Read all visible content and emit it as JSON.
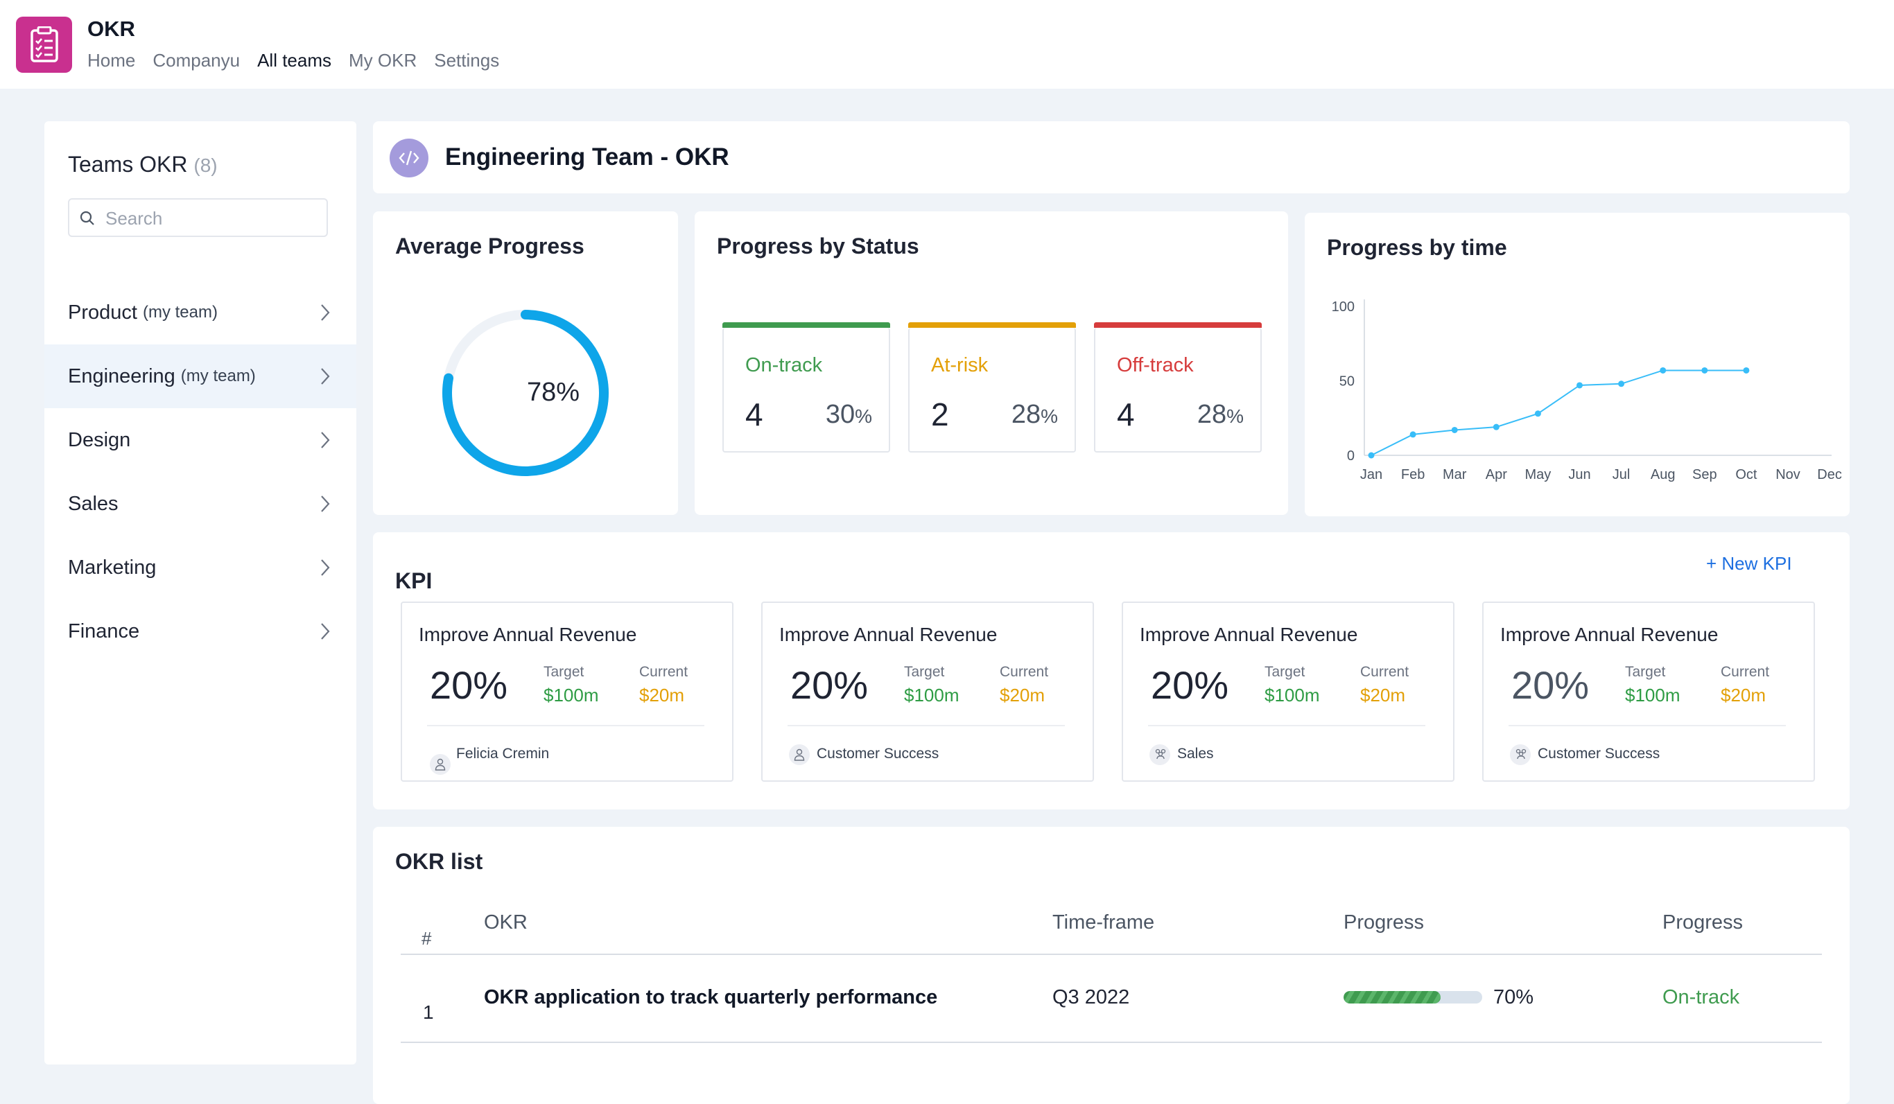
{
  "app": {
    "title": "OKR",
    "logo_icon": "clipboard-list-icon",
    "brand_color": "#c9308f"
  },
  "nav": {
    "items": [
      {
        "label": "Home",
        "active": false
      },
      {
        "label": "Companyu",
        "active": false
      },
      {
        "label": "All teams",
        "active": true
      },
      {
        "label": "My OKR",
        "active": false
      },
      {
        "label": "Settings",
        "active": false
      }
    ]
  },
  "sidebar": {
    "title": "Teams OKR",
    "count": "(8)",
    "search_placeholder": "Search",
    "items": [
      {
        "label": "Product",
        "tag": "(my team)",
        "active": false
      },
      {
        "label": "Engineering",
        "tag": "(my team)",
        "active": true
      },
      {
        "label": "Design",
        "tag": "",
        "active": false
      },
      {
        "label": "Sales",
        "tag": "",
        "active": false
      },
      {
        "label": "Marketing",
        "tag": "",
        "active": false
      },
      {
        "label": "Finance",
        "tag": "",
        "active": false
      }
    ]
  },
  "team": {
    "title": "Engineering Team - OKR",
    "icon": "code-icon"
  },
  "average_progress": {
    "title": "Average Progress",
    "value": 78,
    "label": "78%",
    "color": "#0ea5e9"
  },
  "status": {
    "title": "Progress by Status",
    "items": [
      {
        "name": "On-track",
        "count": "4",
        "pct": "30",
        "unit": "%",
        "color": "#3f9b4f"
      },
      {
        "name": "At-risk",
        "count": "2",
        "pct": "28",
        "unit": "%",
        "color": "#e3a008"
      },
      {
        "name": "Off-track",
        "count": "4",
        "pct": "28",
        "unit": "%",
        "color": "#d63c3c"
      }
    ]
  },
  "progress_by_time": {
    "title": "Progress by time",
    "chart_data": {
      "type": "line",
      "categories": [
        "Jan",
        "Feb",
        "Mar",
        "Apr",
        "May",
        "Jun",
        "Jul",
        "Aug",
        "Sep",
        "Oct",
        "Nov",
        "Dec"
      ],
      "series": [
        {
          "values": [
            0,
            14,
            17,
            19,
            28,
            47,
            48,
            57,
            57,
            57,
            null,
            null
          ]
        }
      ],
      "y_ticks": [
        0,
        50,
        100
      ],
      "ylim": [
        0,
        100
      ],
      "grid": false,
      "color": "#38bdf8"
    }
  },
  "kpi": {
    "title": "KPI",
    "new_label": "+ New KPI",
    "target_label": "Target",
    "current_label": "Current",
    "items": [
      {
        "name": "Improve Annual Revenue",
        "pct": "20%",
        "target": "$100m",
        "current": "$20m",
        "owner": "Felicia Cremin",
        "owner_icon": "user-icon"
      },
      {
        "name": "Improve Annual Revenue",
        "pct": "20%",
        "target": "$100m",
        "current": "$20m",
        "owner": "Customer Success",
        "owner_icon": "user-icon"
      },
      {
        "name": "Improve Annual Revenue",
        "pct": "20%",
        "target": "$100m",
        "current": "$20m",
        "owner": "Sales",
        "owner_icon": "team-icon"
      },
      {
        "name": "Improve Annual Revenue",
        "pct": "20%",
        "target": "$100m",
        "current": "$20m",
        "owner": "Customer Success",
        "owner_icon": "team-icon"
      }
    ]
  },
  "okr_list": {
    "title": "OKR list",
    "columns": [
      "#",
      "OKR",
      "Time-frame",
      "Progress",
      "Progress"
    ],
    "rows": [
      {
        "num": "1",
        "okr": "OKR application to track quarterly performance",
        "timeframe": "Q3 2022",
        "progress": 70,
        "progress_label": "70%",
        "status": "On-track",
        "status_color": "#3f9b4f"
      }
    ]
  }
}
